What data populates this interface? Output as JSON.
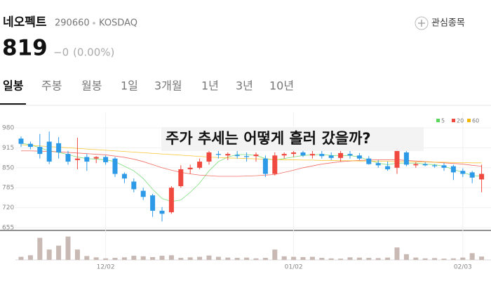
{
  "header": {
    "name": "네오펙트",
    "code": "290660",
    "market": "KOSDAQ",
    "watch_label": "관심종목",
    "price": "819",
    "change": "−0",
    "change_pct": "(0.00%)"
  },
  "tabs": [
    "일봉",
    "주봉",
    "월봉",
    "1일",
    "3개월",
    "1년",
    "3년",
    "10년"
  ],
  "chart_data": {
    "type": "candlestick",
    "overlay_text": "주가 추세는 어떻게 흘러 갔을까?",
    "categories": [
      null,
      null,
      null,
      null,
      null,
      null,
      null,
      null,
      null,
      "12/02",
      null,
      null,
      null,
      null,
      null,
      null,
      null,
      null,
      null,
      null,
      null,
      null,
      null,
      null,
      null,
      null,
      null,
      null,
      null,
      "01/02",
      null,
      null,
      null,
      null,
      null,
      null,
      null,
      null,
      null,
      null,
      null,
      null,
      null,
      null,
      null,
      null,
      null,
      "02/03",
      null,
      null
    ],
    "open": [
      945,
      928,
      918,
      935,
      930,
      895,
      875,
      885,
      880,
      885,
      880,
      830,
      805,
      775,
      760,
      710,
      705,
      790,
      845,
      850,
      870,
      895,
      890,
      892,
      888,
      888,
      880,
      830,
      890,
      895,
      900,
      890,
      895,
      890,
      882,
      895,
      890,
      880,
      865,
      855,
      850,
      900,
      858,
      862,
      858,
      858,
      855,
      840,
      835,
      812
    ],
    "high": [
      952,
      935,
      960,
      968,
      950,
      905,
      948,
      895,
      888,
      890,
      885,
      835,
      815,
      785,
      765,
      722,
      790,
      858,
      860,
      880,
      905,
      905,
      900,
      905,
      900,
      900,
      890,
      900,
      900,
      905,
      908,
      905,
      905,
      900,
      905,
      905,
      898,
      888,
      875,
      870,
      915,
      905,
      868,
      868,
      862,
      865,
      860,
      848,
      840,
      860
    ],
    "low": [
      918,
      910,
      880,
      862,
      880,
      860,
      845,
      840,
      865,
      860,
      820,
      800,
      770,
      745,
      690,
      675,
      700,
      785,
      830,
      845,
      860,
      880,
      875,
      880,
      870,
      870,
      820,
      825,
      880,
      885,
      885,
      880,
      880,
      875,
      870,
      880,
      875,
      860,
      850,
      840,
      830,
      855,
      850,
      855,
      850,
      840,
      810,
      820,
      800,
      770
    ],
    "close": [
      928,
      918,
      895,
      870,
      900,
      870,
      880,
      870,
      885,
      868,
      830,
      815,
      780,
      755,
      710,
      700,
      785,
      845,
      850,
      870,
      900,
      892,
      895,
      888,
      885,
      893,
      830,
      890,
      895,
      900,
      890,
      895,
      888,
      882,
      898,
      890,
      880,
      862,
      858,
      845,
      905,
      860,
      862,
      858,
      855,
      850,
      835,
      830,
      818,
      830
    ],
    "volume": [
      1.2,
      1.8,
      8.5,
      4,
      5.5,
      9,
      4,
      1.5,
      1,
      0.6,
      0.8,
      1,
      1.6,
      1.4,
      1.1,
      1.6,
      1.8,
      0.8,
      1,
      1.2,
      1.7,
      1.2,
      0.9,
      0.8,
      0.9,
      0.6,
      0.8,
      4,
      1.4,
      1.2,
      1.1,
      1.2,
      0.8,
      0.6,
      0.5,
      1,
      0.9,
      0.8,
      0.7,
      0.9,
      4.8,
      2.2,
      0.9,
      0.6,
      0.7,
      0.5,
      0.6,
      0.9,
      2.6,
      1.3
    ],
    "vlim": [
      0,
      10
    ],
    "up_color": "#f0493f",
    "down_color": "#2d9ae8",
    "volume_color": "#c8b9b4",
    "series": [
      {
        "name": "5",
        "color": "#5bd65b",
        "values": [
          930,
          925,
          915,
          905,
          900,
          893,
          885,
          880,
          878,
          876,
          870,
          855,
          840,
          815,
          780,
          750,
          740,
          745,
          770,
          800,
          840,
          870,
          885,
          893,
          893,
          890,
          880,
          875,
          880,
          885,
          890,
          892,
          893,
          890,
          890,
          890,
          885,
          875,
          865,
          860,
          865,
          865,
          865,
          862,
          860,
          855,
          845,
          835,
          825,
          822
        ]
      },
      {
        "name": "20",
        "color": "#f0493f",
        "values": [
          905,
          905,
          904,
          903,
          902,
          900,
          898,
          896,
          894,
          892,
          888,
          884,
          878,
          870,
          860,
          850,
          842,
          835,
          830,
          826,
          824,
          822,
          822,
          822,
          823,
          824,
          826,
          828,
          835,
          842,
          850,
          856,
          862,
          866,
          870,
          872,
          874,
          875,
          876,
          876,
          876,
          874,
          872,
          870,
          868,
          866,
          864,
          862,
          858,
          855
        ]
      },
      {
        "name": "60",
        "color": "#f5b800",
        "values": [
          925,
          923,
          921,
          919,
          917,
          915,
          913,
          911,
          909,
          907,
          905,
          903,
          901,
          899,
          897,
          895,
          893,
          891,
          889,
          887,
          885,
          883,
          882,
          881,
          880,
          879,
          878,
          877,
          876,
          876,
          875,
          875,
          874,
          874,
          873,
          873,
          872,
          872,
          871,
          871,
          870,
          870,
          869,
          869,
          868,
          868,
          867,
          867,
          866,
          866
        ]
      }
    ],
    "ylim": [
      655,
      980
    ],
    "yticks": [
      655,
      720,
      785,
      850,
      915,
      980
    ],
    "grid": true,
    "legend": "top-right"
  }
}
